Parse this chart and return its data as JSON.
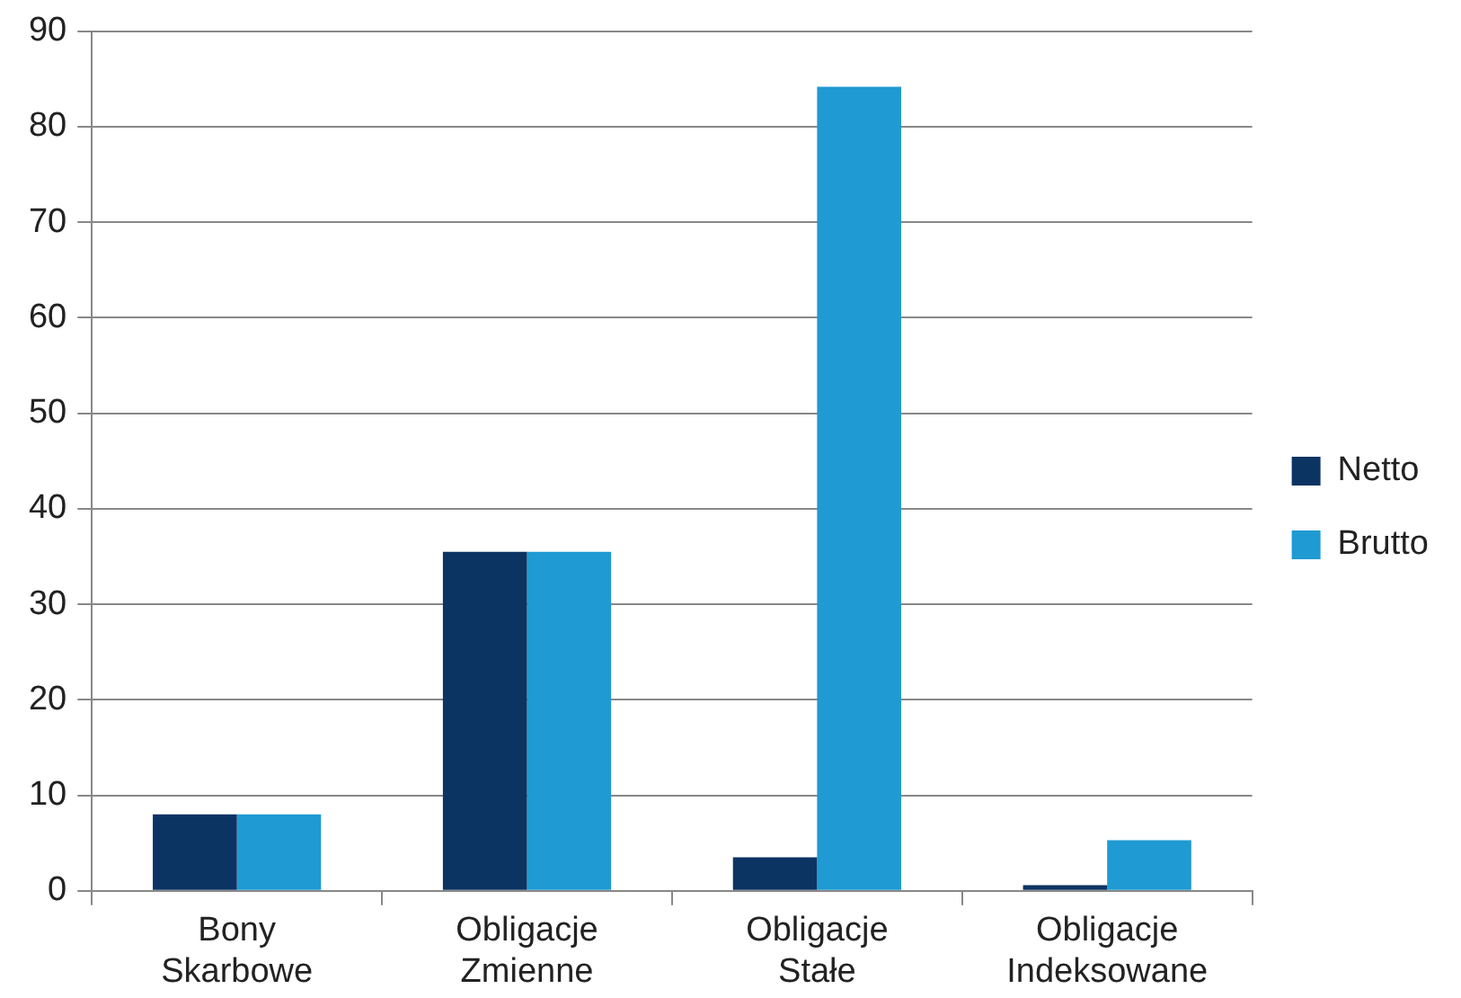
{
  "chart_data": {
    "type": "bar",
    "categories": [
      "Bony Skarbowe",
      "Obligacje Zmienne",
      "Obligacje Stałe",
      "Obligacje Indeksowane"
    ],
    "series": [
      {
        "name": "Netto",
        "color": "#0c3463",
        "values": [
          8.0,
          35.5,
          3.5,
          0.6
        ]
      },
      {
        "name": "Brutto",
        "color": "#1f9ad2",
        "values": [
          8.0,
          35.5,
          84.2,
          5.3
        ]
      }
    ],
    "ylim": [
      0,
      90
    ],
    "yticks": [
      0,
      10,
      20,
      30,
      40,
      50,
      60,
      70,
      80,
      90
    ],
    "grid": "y",
    "legend": "right"
  }
}
